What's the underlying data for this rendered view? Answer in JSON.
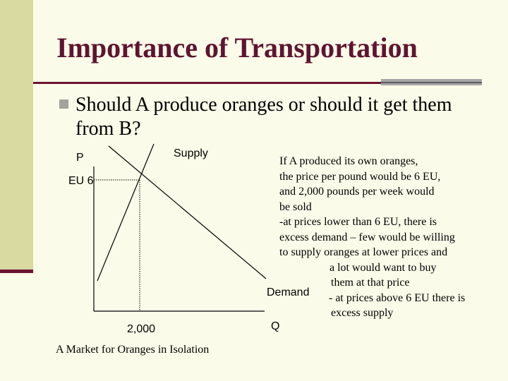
{
  "slide": {
    "title": "Importance of Transportation",
    "bullet": "Should A produce oranges or should it get them from B?"
  },
  "diagram": {
    "p_label": "P",
    "supply_label": "Supply",
    "eu_label": "EU 6",
    "demand_label": "Demand",
    "q_label": "Q",
    "qty_label": "2,000",
    "caption": "A Market for Oranges in Isolation"
  },
  "explanation": {
    "lines": [
      "If A produced its own oranges,",
      "the price per pound would be 6 EU,",
      "and 2,000 pounds per week would",
      "be sold",
      "-at prices lower than 6 EU, there is",
      "excess demand – few would be willing",
      "to supply oranges at lower prices and",
      "a lot would want to buy",
      "them at that price",
      "- at prices above 6 EU there is",
      "excess supply"
    ]
  },
  "colors": {
    "background": "#fbfbe9",
    "left_band": "#d9d9a2",
    "accent": "#6a1530",
    "title": "#5e1530",
    "bullet": "#a4a39a"
  }
}
